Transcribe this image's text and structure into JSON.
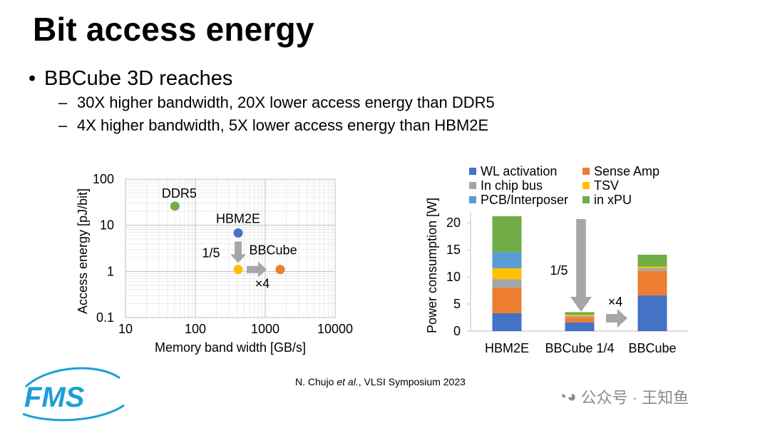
{
  "slide": {
    "title": "Bit access energy",
    "bullet": "BBCube 3D reaches",
    "subbullets": [
      "30X higher bandwidth, 20X lower access energy than DDR5",
      "4X higher bandwidth, 5X lower access energy than HBM2E"
    ],
    "citation": {
      "prefix": "N. Chujo ",
      "italic": "et al.",
      "suffix": ", VLSI Symposium 2023"
    },
    "logo_text": "FMS",
    "watermark": "公众号 · 王知鱼"
  },
  "chart_data": [
    {
      "type": "scatter",
      "xlabel": "Memory band width [GB/s]",
      "ylabel": "Access energy [pJ/bit]",
      "x_scale": "log",
      "y_scale": "log",
      "xlim": [
        10,
        10000
      ],
      "ylim": [
        0.1,
        100
      ],
      "x_ticks": [
        "10",
        "100",
        "1000",
        "10000"
      ],
      "y_ticks": [
        "100",
        "10",
        "1",
        "0.1"
      ],
      "grid": true,
      "points": [
        {
          "label": "DDR5",
          "x": 51,
          "y": 26,
          "color": "#70ad47"
        },
        {
          "label": "HBM2E",
          "x": 410,
          "y": 6.8,
          "color": "#4472c4"
        },
        {
          "label": "",
          "x": 410,
          "y": 1.1,
          "color": "#ffc000"
        },
        {
          "label": "BBCube",
          "x": 1640,
          "y": 1.1,
          "color": "#ed7d31"
        }
      ],
      "annotations": [
        "1/5",
        "×4"
      ]
    },
    {
      "type": "bar",
      "stacked": true,
      "ylabel": "Power consumption [W]",
      "ylim": [
        0,
        22
      ],
      "y_ticks": [
        "0",
        "5",
        "10",
        "15",
        "20"
      ],
      "categories": [
        "HBM2E",
        "BBCube 1/4",
        "BBCube"
      ],
      "legend_position": "top",
      "series": [
        {
          "name": "WL activation",
          "color": "#4472c4",
          "values": [
            3.3,
            1.6,
            6.6
          ]
        },
        {
          "name": "Sense Amp",
          "color": "#ed7d31",
          "values": [
            4.7,
            1.0,
            4.5
          ]
        },
        {
          "name": "In chip bus",
          "color": "#a5a5a5",
          "values": [
            1.6,
            0.2,
            0.5
          ]
        },
        {
          "name": "TSV",
          "color": "#ffc000",
          "values": [
            2.0,
            0.2,
            0.3
          ]
        },
        {
          "name": "PCB/Interposer",
          "color": "#5b9bd5",
          "values": [
            3.0,
            0.0,
            0.0
          ]
        },
        {
          "name": "in xPU",
          "color": "#70ad47",
          "values": [
            6.6,
            0.5,
            2.2
          ]
        }
      ],
      "annotations": [
        "1/5",
        "×4"
      ]
    }
  ]
}
